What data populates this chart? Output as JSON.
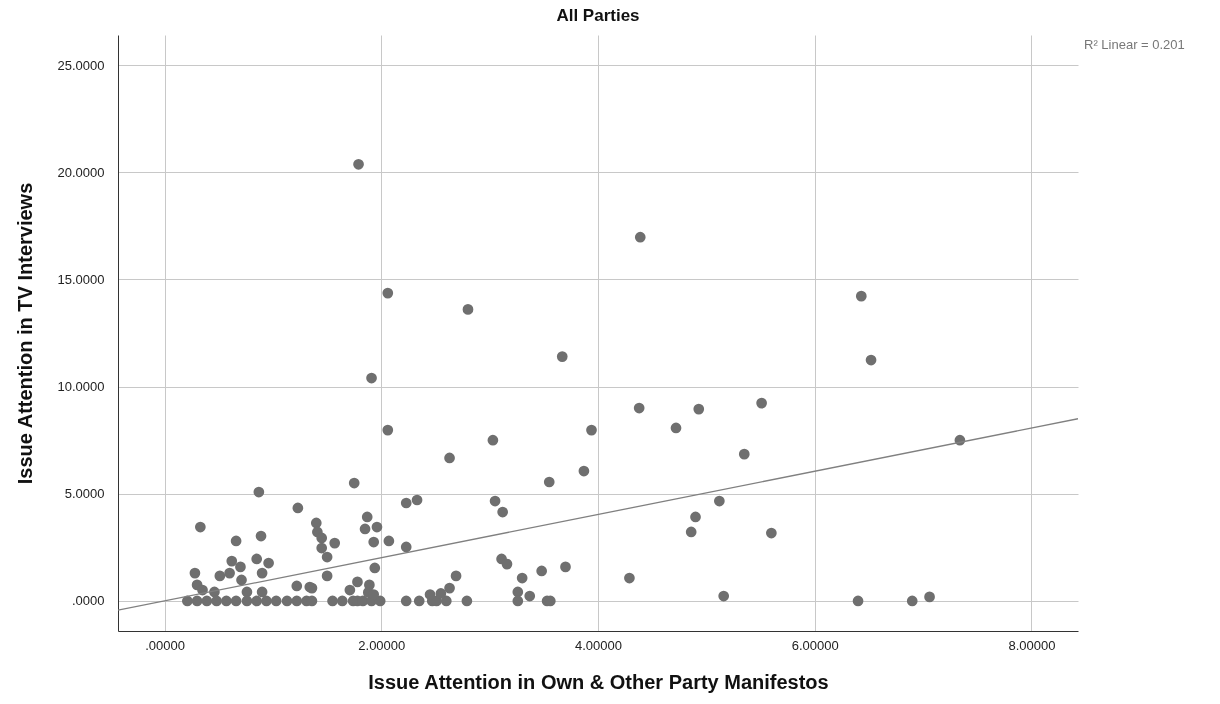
{
  "chart_data": {
    "type": "scatter",
    "title": "All Parties",
    "xlabel": "Issue Attention in Own & Other Party Manifestos",
    "ylabel": "Issue Attention in TV Interviews",
    "xlim": [
      -0.43,
      8.43
    ],
    "ylim": [
      -1.4,
      26.4
    ],
    "xticks": [
      {
        "value": 0,
        "label": ".00000"
      },
      {
        "value": 2,
        "label": "2.00000"
      },
      {
        "value": 4,
        "label": "4.00000"
      },
      {
        "value": 6,
        "label": "6.00000"
      },
      {
        "value": 8,
        "label": "8.00000"
      }
    ],
    "yticks": [
      {
        "value": 0,
        "label": ".0000"
      },
      {
        "value": 5,
        "label": "5.0000"
      },
      {
        "value": 10,
        "label": "10.0000"
      },
      {
        "value": 15,
        "label": "15.0000"
      },
      {
        "value": 20,
        "label": "20.0000"
      },
      {
        "value": 25,
        "label": "25.0000"
      }
    ],
    "grid": true,
    "annotations": [
      "R² Linear = 0.201"
    ],
    "series": [
      {
        "marker": "circle",
        "color": "#6f6f6f",
        "x": [
          1.79,
          4.39,
          2.06,
          2.8,
          6.43,
          6.52,
          3.67,
          1.91,
          2.06,
          4.38,
          4.93,
          5.51,
          4.72,
          3.94,
          3.03,
          7.34,
          3.87,
          2.63,
          5.35,
          1.75,
          0.87,
          3.55,
          3.05,
          3.12,
          5.12,
          4.9,
          4.86,
          5.6,
          3.11,
          3.16,
          3.7,
          3.48,
          3.3,
          4.29,
          3.26,
          3.37,
          3.26,
          3.53,
          3.56,
          5.16,
          6.4,
          6.9,
          7.06,
          2.23,
          2.33,
          1.94,
          1.5,
          1.34,
          1.78,
          1.71,
          1.89,
          2.63,
          2.69,
          2.23,
          1.57,
          1.4,
          1.41,
          1.45,
          1.45,
          1.5,
          1.87,
          1.85,
          1.96,
          1.93,
          2.07,
          1.23,
          0.33,
          0.89,
          0.66,
          0.62,
          0.85,
          0.96,
          0.7,
          0.28,
          0.51,
          0.6,
          0.71,
          0.9,
          1.22,
          1.36,
          0.3,
          0.35,
          0.46,
          0.76,
          0.9,
          0.21,
          0.3,
          0.39,
          0.48,
          0.57,
          0.66,
          0.76,
          0.85,
          0.94,
          1.03,
          1.13,
          1.22,
          1.31,
          1.36,
          1.55,
          1.64,
          1.74,
          1.78,
          1.83,
          1.91,
          1.99,
          2.23,
          2.35,
          2.47,
          2.51,
          2.6,
          2.79,
          1.88,
          1.93,
          2.45,
          2.55
        ],
        "values": [
          20.37,
          16.97,
          14.36,
          13.6,
          14.22,
          11.24,
          11.4,
          10.4,
          7.97,
          9.0,
          8.95,
          9.23,
          8.07,
          7.97,
          7.5,
          7.5,
          6.06,
          6.67,
          6.85,
          5.5,
          5.08,
          5.55,
          4.66,
          4.15,
          4.66,
          3.92,
          3.22,
          3.17,
          1.96,
          1.72,
          1.59,
          1.4,
          1.07,
          1.07,
          0.42,
          0.23,
          0,
          0,
          0,
          0.23,
          0,
          0,
          0.19,
          4.57,
          4.71,
          1.54,
          1.17,
          0.65,
          0.89,
          0.51,
          0.75,
          0.6,
          1.17,
          2.52,
          2.7,
          3.64,
          3.22,
          2.94,
          2.47,
          2.05,
          3.92,
          3.36,
          3.45,
          2.75,
          2.8,
          4.34,
          3.45,
          3.03,
          2.8,
          1.86,
          1.96,
          1.77,
          1.59,
          1.3,
          1.17,
          1.3,
          0.98,
          1.3,
          0.7,
          0.6,
          0.75,
          0.51,
          0.42,
          0.42,
          0.42,
          0,
          0,
          0,
          0,
          0,
          0,
          0,
          0,
          0,
          0,
          0,
          0,
          0,
          0,
          0,
          0,
          0,
          0,
          0,
          0,
          0,
          0,
          0,
          0,
          0,
          0,
          0,
          0.4,
          0.3,
          0.3,
          0.35
        ]
      },
      {
        "type": "line",
        "marker": "none",
        "color": "#808080",
        "x": [
          -0.43,
          8.43
        ],
        "values": [
          -0.43,
          8.5
        ]
      }
    ]
  }
}
